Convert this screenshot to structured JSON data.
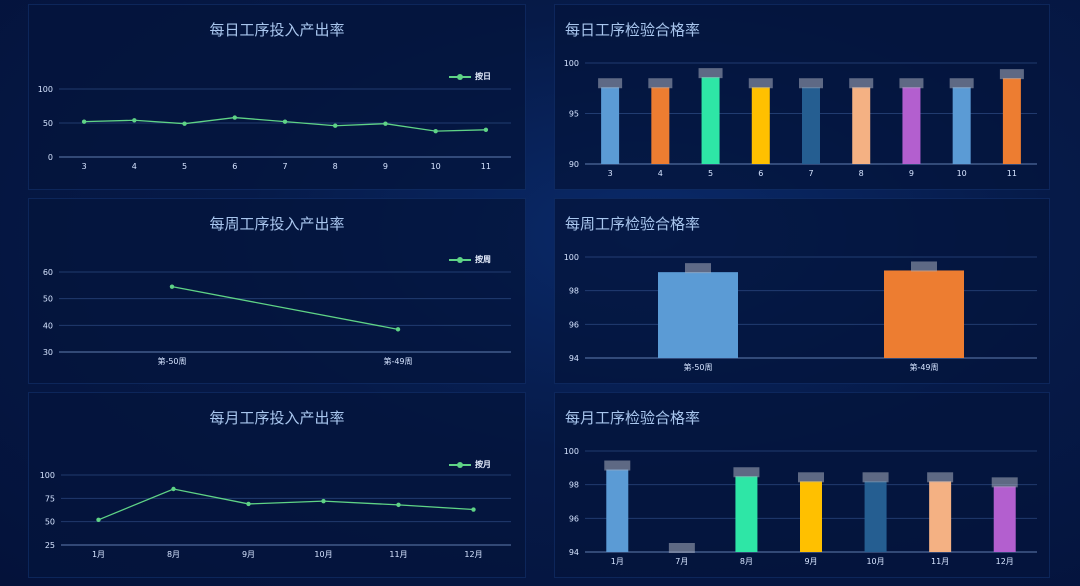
{
  "chart_data": [
    {
      "id": "daily-output",
      "type": "line",
      "title": "每日工序投入产出率",
      "legend": "按日",
      "legend_position": "top-right",
      "x": [
        "3",
        "4",
        "5",
        "6",
        "7",
        "8",
        "9",
        "10",
        "11"
      ],
      "series": [
        {
          "name": "按日",
          "values": [
            52,
            54,
            49,
            58,
            52,
            46,
            49,
            38,
            40
          ]
        }
      ],
      "yticks": [
        0,
        50,
        100
      ],
      "ylim": [
        0,
        100
      ],
      "color": "#5fd386"
    },
    {
      "id": "weekly-output",
      "type": "line",
      "title": "每周工序投入产出率",
      "legend": "按周",
      "legend_position": "top-right",
      "x": [
        "第-50周",
        "第-49周"
      ],
      "series": [
        {
          "name": "按周",
          "values": [
            54.5,
            38.5
          ]
        }
      ],
      "yticks": [
        30,
        40,
        50,
        60
      ],
      "ylim": [
        30,
        60
      ],
      "color": "#5fd386"
    },
    {
      "id": "monthly-output",
      "type": "line",
      "title": "每月工序投入产出率",
      "legend": "按月",
      "legend_position": "top-right",
      "x": [
        "1月",
        "8月",
        "9月",
        "10月",
        "11月",
        "12月"
      ],
      "series": [
        {
          "name": "按月",
          "values": [
            52,
            85,
            69,
            72,
            68,
            63
          ]
        }
      ],
      "yticks": [
        25,
        50,
        75,
        100
      ],
      "ylim": [
        25,
        100
      ],
      "color": "#5fd386"
    },
    {
      "id": "daily-pass",
      "type": "bar",
      "title": "每日工序检验合格率",
      "categories": [
        "3",
        "4",
        "5",
        "6",
        "7",
        "8",
        "9",
        "10",
        "11"
      ],
      "values": [
        97.6,
        97.6,
        98.6,
        97.6,
        97.6,
        97.6,
        97.6,
        97.6,
        98.5
      ],
      "colors": [
        "#5b9bd5",
        "#ed7d31",
        "#2ee6a6",
        "#ffc000",
        "#255e91",
        "#f4b183",
        "#b35fcf",
        "#5b9bd5",
        "#ed7d31"
      ],
      "yticks": [
        90,
        95,
        100
      ],
      "ylim": [
        90,
        100
      ]
    },
    {
      "id": "weekly-pass",
      "type": "bar",
      "title": "每周工序检验合格率",
      "categories": [
        "第-50周",
        "第-49周"
      ],
      "values": [
        99.1,
        99.2
      ],
      "colors": [
        "#5b9bd5",
        "#ed7d31"
      ],
      "yticks": [
        94,
        96,
        98,
        100
      ],
      "ylim": [
        94,
        100
      ]
    },
    {
      "id": "monthly-pass",
      "type": "bar",
      "title": "每月工序检验合格率",
      "categories": [
        "1月",
        "7月",
        "8月",
        "9月",
        "10月",
        "11月",
        "12月"
      ],
      "values": [
        98.9,
        94,
        98.5,
        98.2,
        98.2,
        98.2,
        97.9
      ],
      "colors": [
        "#5b9bd5",
        "#5b9bd5",
        "#2ee6a6",
        "#ffc000",
        "#255e91",
        "#f4b183",
        "#b35fcf"
      ],
      "yticks": [
        94,
        96,
        98,
        100
      ],
      "ylim": [
        94,
        100
      ]
    }
  ]
}
